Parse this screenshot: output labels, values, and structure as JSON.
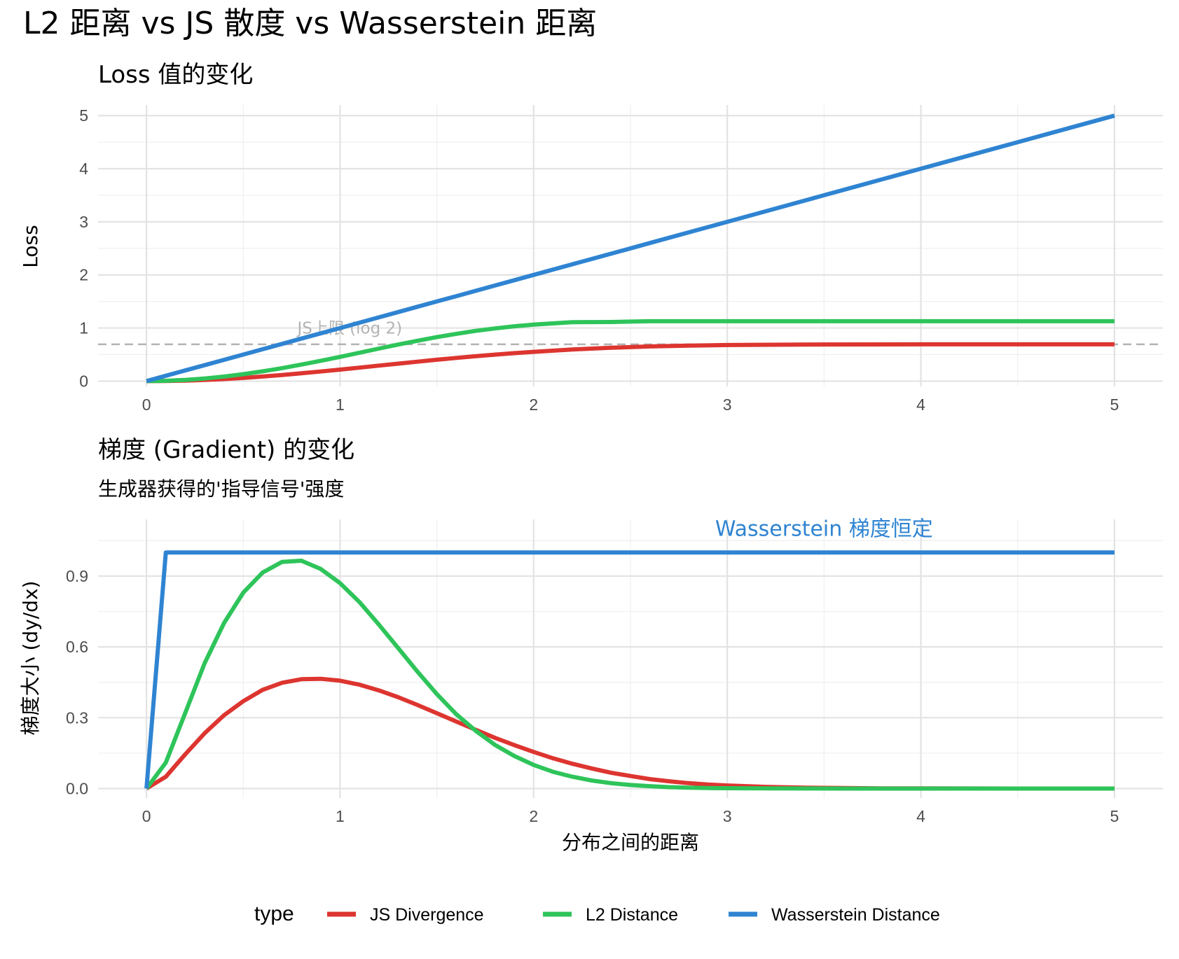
{
  "title": "L2 距离 vs JS 散度 vs Wasserstein 距离",
  "colors": {
    "js": "#dd3530",
    "l2": "#2ec45a",
    "wasserstein": "#2f84d2",
    "reference": "#b3b3b3"
  },
  "legend": {
    "title": "type",
    "position": "bottom",
    "items": [
      {
        "label": "JS Divergence",
        "color": "#dd3530"
      },
      {
        "label": "L2 Distance",
        "color": "#2ec45a"
      },
      {
        "label": "Wasserstein Distance",
        "color": "#2f84d2"
      }
    ]
  },
  "chart_data": [
    {
      "type": "line",
      "subtitle": "Loss 值的变化",
      "ylabel": "Loss",
      "xlabel": "",
      "xlim": [
        -0.25,
        5.25
      ],
      "ylim": [
        -0.1,
        5.2
      ],
      "x_ticks": [
        "0",
        "1",
        "2",
        "3",
        "4",
        "5"
      ],
      "y_ticks": [
        "0",
        "1",
        "2",
        "3",
        "4",
        "5"
      ],
      "grid": true,
      "reference_line": {
        "y": 0.693,
        "label": "JS上限 (log 2)",
        "label_x": 1.05,
        "label_y": 1.0
      },
      "x": [
        0,
        0.1,
        0.2,
        0.3,
        0.4,
        0.5,
        0.6,
        0.7,
        0.8,
        0.9,
        1.0,
        1.1,
        1.2,
        1.3,
        1.4,
        1.5,
        1.6,
        1.7,
        1.8,
        1.9,
        2.0,
        2.2,
        2.4,
        2.6,
        2.8,
        3.0,
        3.5,
        4.0,
        4.5,
        5.0
      ],
      "series": [
        {
          "name": "JS Divergence",
          "values": [
            0,
            0.002,
            0.01,
            0.022,
            0.039,
            0.06,
            0.086,
            0.115,
            0.147,
            0.181,
            0.216,
            0.253,
            0.291,
            0.328,
            0.366,
            0.402,
            0.436,
            0.468,
            0.498,
            0.526,
            0.551,
            0.595,
            0.628,
            0.653,
            0.669,
            0.679,
            0.69,
            0.692,
            0.693,
            0.693
          ]
        },
        {
          "name": "L2 Distance",
          "values": [
            0,
            0.005,
            0.022,
            0.049,
            0.085,
            0.131,
            0.184,
            0.244,
            0.311,
            0.382,
            0.457,
            0.534,
            0.612,
            0.688,
            0.76,
            0.828,
            0.89,
            0.945,
            0.992,
            1.032,
            1.064,
            1.109,
            1.113,
            1.127,
            1.128,
            1.128,
            1.128,
            1.128,
            1.128,
            1.128
          ]
        },
        {
          "name": "Wasserstein Distance",
          "values": [
            0,
            0.1,
            0.2,
            0.3,
            0.4,
            0.5,
            0.6,
            0.7,
            0.8,
            0.9,
            1.0,
            1.1,
            1.2,
            1.3,
            1.4,
            1.5,
            1.6,
            1.7,
            1.8,
            1.9,
            2.0,
            2.2,
            2.4,
            2.6,
            2.8,
            3.0,
            3.5,
            4.0,
            4.5,
            5.0
          ]
        }
      ]
    },
    {
      "type": "line",
      "subtitle": "梯度 (Gradient) 的变化",
      "caption": "生成器获得的'指导信号'强度",
      "ylabel": "梯度大小 (dy/dx)",
      "xlabel": "分布之间的距离",
      "xlim": [
        -0.25,
        5.25
      ],
      "ylim": [
        -0.04,
        1.14
      ],
      "x_ticks": [
        "0",
        "1",
        "2",
        "3",
        "4",
        "5"
      ],
      "y_ticks": [
        "0.0",
        "0.3",
        "0.6",
        "0.9"
      ],
      "grid": true,
      "annotation": {
        "text": "Wasserstein 梯度恒定",
        "x": 3.5,
        "y": 1.1
      },
      "x": [
        0,
        0.1,
        0.2,
        0.3,
        0.4,
        0.5,
        0.6,
        0.7,
        0.8,
        0.9,
        1.0,
        1.1,
        1.2,
        1.3,
        1.4,
        1.5,
        1.6,
        1.7,
        1.8,
        1.9,
        2.0,
        2.1,
        2.2,
        2.3,
        2.4,
        2.5,
        2.6,
        2.7,
        2.8,
        2.9,
        3.0,
        3.2,
        3.4,
        3.6,
        3.8,
        4.0,
        4.5,
        5.0
      ],
      "series": [
        {
          "name": "JS Divergence",
          "values": [
            0,
            0.05,
            0.145,
            0.234,
            0.31,
            0.37,
            0.418,
            0.448,
            0.463,
            0.465,
            0.457,
            0.44,
            0.416,
            0.387,
            0.354,
            0.319,
            0.284,
            0.249,
            0.215,
            0.184,
            0.155,
            0.128,
            0.105,
            0.085,
            0.067,
            0.053,
            0.04,
            0.031,
            0.023,
            0.017,
            0.013,
            0.007,
            0.004,
            0.002,
            0.001,
            0.0005,
            0.0,
            0.0
          ]
        },
        {
          "name": "L2 Distance",
          "values": [
            0,
            0.11,
            0.32,
            0.53,
            0.7,
            0.83,
            0.915,
            0.96,
            0.965,
            0.93,
            0.87,
            0.79,
            0.695,
            0.595,
            0.495,
            0.4,
            0.315,
            0.245,
            0.185,
            0.138,
            0.1,
            0.071,
            0.05,
            0.034,
            0.023,
            0.015,
            0.01,
            0.006,
            0.004,
            0.002,
            0.0015,
            0.0006,
            0.0002,
            0.0001,
            0.0,
            0.0,
            0.0,
            0.0
          ]
        },
        {
          "name": "Wasserstein Distance",
          "values": [
            0,
            1,
            1,
            1,
            1,
            1,
            1,
            1,
            1,
            1,
            1,
            1,
            1,
            1,
            1,
            1,
            1,
            1,
            1,
            1,
            1,
            1,
            1,
            1,
            1,
            1,
            1,
            1,
            1,
            1,
            1,
            1,
            1,
            1,
            1,
            1,
            1,
            1
          ]
        }
      ]
    }
  ]
}
